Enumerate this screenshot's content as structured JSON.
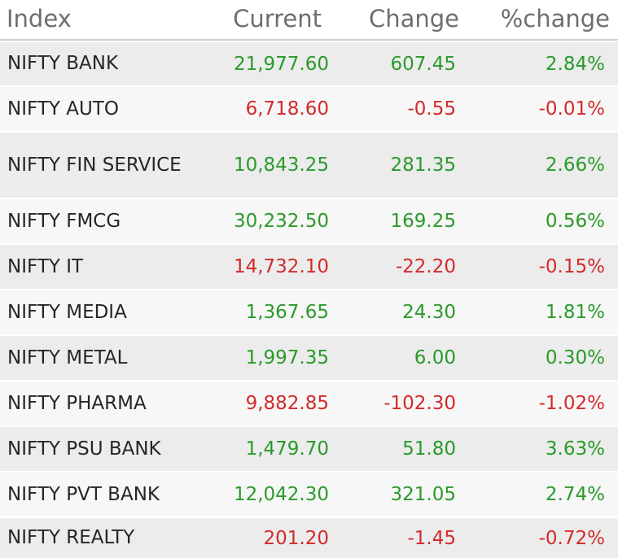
{
  "header": {
    "index": "Index",
    "current": "Current",
    "change": "Change",
    "pct_change": "%change"
  },
  "colors": {
    "positive": "#2a9a2a",
    "negative": "#d32a2a"
  },
  "rows": [
    {
      "name": "NIFTY BANK",
      "current": "21,977.60",
      "change": "607.45",
      "pct": "2.84%",
      "direction": "up"
    },
    {
      "name": "NIFTY AUTO",
      "current": "6,718.60",
      "change": "-0.55",
      "pct": "-0.01%",
      "direction": "down"
    },
    {
      "name": "NIFTY FIN SERVICE",
      "current": "10,843.25",
      "change": "281.35",
      "pct": "2.66%",
      "direction": "up"
    },
    {
      "name": "NIFTY FMCG",
      "current": "30,232.50",
      "change": "169.25",
      "pct": "0.56%",
      "direction": "up"
    },
    {
      "name": "NIFTY IT",
      "current": "14,732.10",
      "change": "-22.20",
      "pct": "-0.15%",
      "direction": "down"
    },
    {
      "name": "NIFTY MEDIA",
      "current": "1,367.65",
      "change": "24.30",
      "pct": "1.81%",
      "direction": "up"
    },
    {
      "name": "NIFTY METAL",
      "current": "1,997.35",
      "change": "6.00",
      "pct": "0.30%",
      "direction": "up"
    },
    {
      "name": "NIFTY PHARMA",
      "current": "9,882.85",
      "change": "-102.30",
      "pct": "-1.02%",
      "direction": "down"
    },
    {
      "name": "NIFTY PSU BANK",
      "current": "1,479.70",
      "change": "51.80",
      "pct": "3.63%",
      "direction": "up"
    },
    {
      "name": "NIFTY PVT BANK",
      "current": "12,042.30",
      "change": "321.05",
      "pct": "2.74%",
      "direction": "up"
    },
    {
      "name": "NIFTY REALTY",
      "current": "201.20",
      "change": "-1.45",
      "pct": "-0.72%",
      "direction": "down"
    }
  ]
}
